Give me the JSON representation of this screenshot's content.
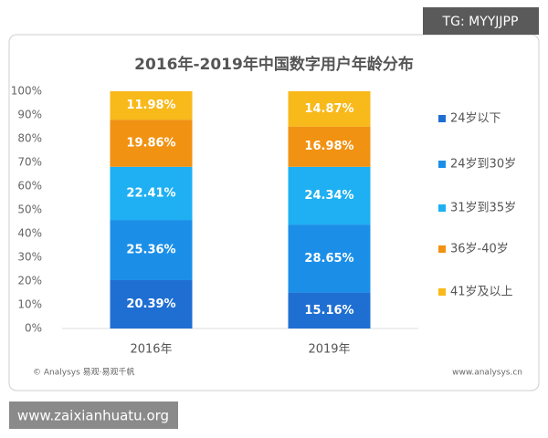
{
  "chart_data": {
    "type": "stacked-bar",
    "title": "2016年-2019年中国数字用户年龄分布",
    "categories": [
      "2016年",
      "2019年"
    ],
    "series": [
      {
        "name": "24岁以下",
        "color": "#1f6fd2",
        "values": [
          20.39,
          15.16
        ],
        "value_labels": [
          "20.39%",
          "15.16%"
        ]
      },
      {
        "name": "24岁到30岁",
        "color": "#1b8fe8",
        "values": [
          25.36,
          28.65
        ],
        "value_labels": [
          "25.36%",
          "28.65%"
        ]
      },
      {
        "name": "31岁到35岁",
        "color": "#1eb0f2",
        "values": [
          22.41,
          24.34
        ],
        "value_labels": [
          "22.41%",
          "24.34%"
        ]
      },
      {
        "name": "36岁-40岁",
        "color": "#f19212",
        "values": [
          19.86,
          16.98
        ],
        "value_labels": [
          "19.86%",
          "16.98%"
        ]
      },
      {
        "name": "41岁及以上",
        "color": "#f8b91a",
        "values": [
          11.98,
          14.87
        ],
        "value_labels": [
          "11.98%",
          "14.87%"
        ]
      }
    ],
    "ylim": [
      0,
      100
    ],
    "yticks": [
      {
        "value": 0,
        "label": "0%"
      },
      {
        "value": 10,
        "label": "10%"
      },
      {
        "value": 20,
        "label": "20%"
      },
      {
        "value": 30,
        "label": "30%"
      },
      {
        "value": 40,
        "label": "40%"
      },
      {
        "value": 50,
        "label": "50%"
      },
      {
        "value": 60,
        "label": "60%"
      },
      {
        "value": 70,
        "label": "70%"
      },
      {
        "value": 80,
        "label": "80%"
      },
      {
        "value": 90,
        "label": "90%"
      },
      {
        "value": 100,
        "label": "100%"
      }
    ],
    "grid": false,
    "legend": "right",
    "source": "© Analysys 易观·易观千帆",
    "website": "www.analysys.cn"
  },
  "overlay": {
    "tag": "TG: MYYJJPP",
    "site": "www.zaixianhuatu.org"
  }
}
